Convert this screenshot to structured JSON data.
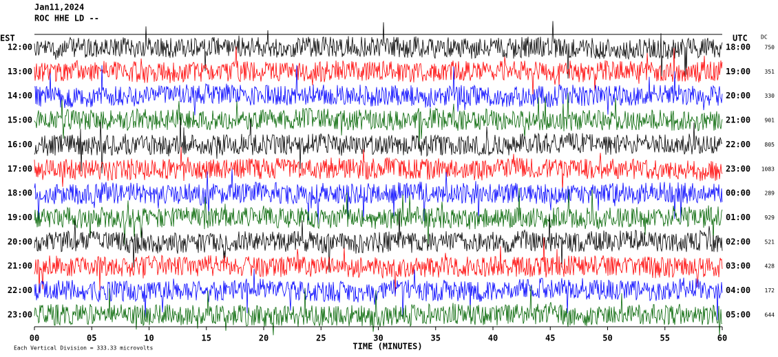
{
  "header": {
    "date": "Jan11,2024",
    "station": "ROC HHE LD --"
  },
  "chart_data": {
    "type": "helicorder",
    "left_axis_label": "EST",
    "right_axis_label": "UTC",
    "dc_label": "DC",
    "xlabel": "TIME (MINUTES)",
    "xlim": [
      0,
      60
    ],
    "xticks": [
      {
        "value": 0,
        "label": "00"
      },
      {
        "value": 5,
        "label": "05"
      },
      10,
      15,
      20,
      25,
      30,
      35,
      40,
      45,
      50,
      55,
      60
    ],
    "rows": [
      {
        "est": "12:00",
        "utc": "18:00",
        "dc": 750,
        "color": "#000000"
      },
      {
        "est": "13:00",
        "utc": "19:00",
        "dc": 351,
        "color": "#ff0000"
      },
      {
        "est": "14:00",
        "utc": "20:00",
        "dc": 330,
        "color": "#0000ff"
      },
      {
        "est": "15:00",
        "utc": "21:00",
        "dc": 901,
        "color": "#006400"
      },
      {
        "est": "16:00",
        "utc": "22:00",
        "dc": 805,
        "color": "#000000"
      },
      {
        "est": "17:00",
        "utc": "23:00",
        "dc": 1083,
        "color": "#ff0000"
      },
      {
        "est": "18:00",
        "utc": "00:00",
        "dc": 289,
        "color": "#0000ff"
      },
      {
        "est": "19:00",
        "utc": "01:00",
        "dc": 929,
        "color": "#006400"
      },
      {
        "est": "20:00",
        "utc": "02:00",
        "dc": 521,
        "color": "#000000"
      },
      {
        "est": "21:00",
        "utc": "03:00",
        "dc": 428,
        "color": "#ff0000"
      },
      {
        "est": "22:00",
        "utc": "04:00",
        "dc": 172,
        "color": "#0000ff"
      },
      {
        "est": "23:00",
        "utc": "05:00",
        "dc": 644,
        "color": "#006400"
      }
    ],
    "footnote": "Each Vertical Division = 333.33 microvolts"
  }
}
